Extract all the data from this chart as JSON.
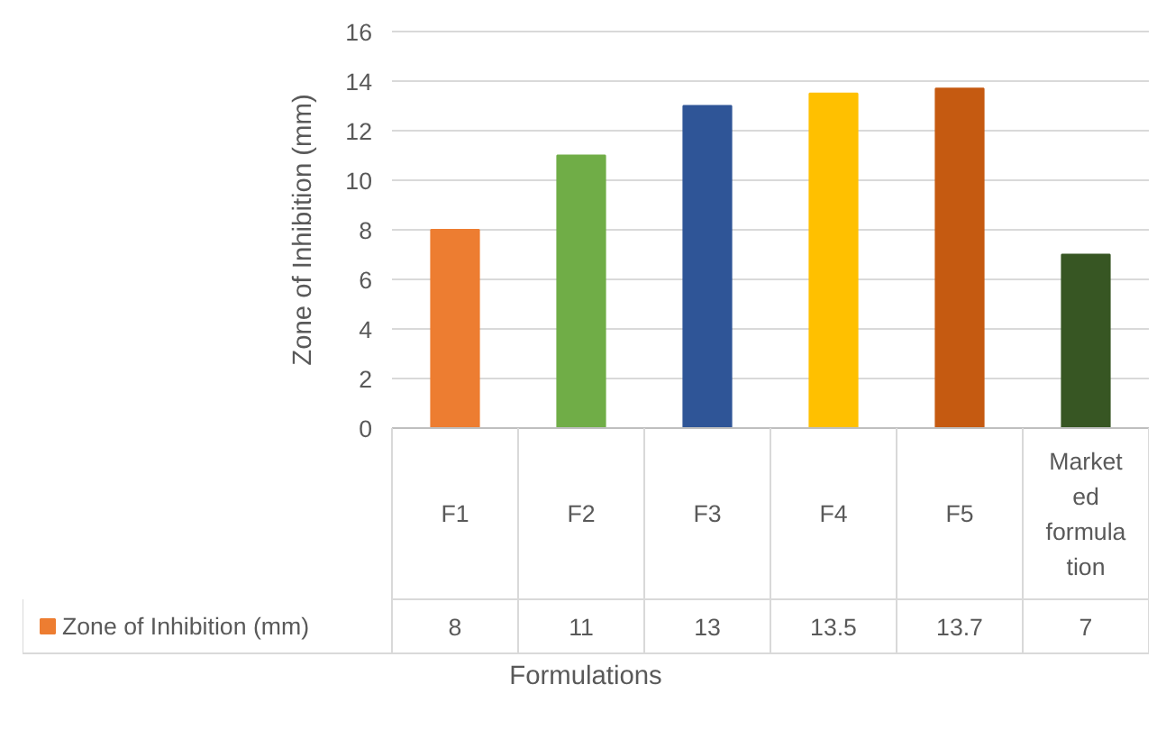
{
  "chart_data": {
    "type": "bar",
    "xlabel": "Formulations",
    "ylabel": "Zone of Inhibition (mm)",
    "categories": [
      "F1",
      "F2",
      "F3",
      "F4",
      "F5",
      "Marketed formulation"
    ],
    "series": [
      {
        "name": "Zone of Inhibition (mm)",
        "color": "#ed7d31",
        "values": [
          8,
          11,
          13,
          13.5,
          13.7,
          7
        ],
        "colors": [
          "#ed7d31",
          "#70ad47",
          "#2f5597",
          "#ffc000",
          "#c55a11",
          "#375623"
        ]
      }
    ],
    "ylim": [
      0,
      16
    ],
    "yticks": [
      0,
      2,
      4,
      6,
      8,
      10,
      12,
      14,
      16
    ],
    "grid": "y",
    "data_labels": true,
    "legend": "bottom"
  }
}
